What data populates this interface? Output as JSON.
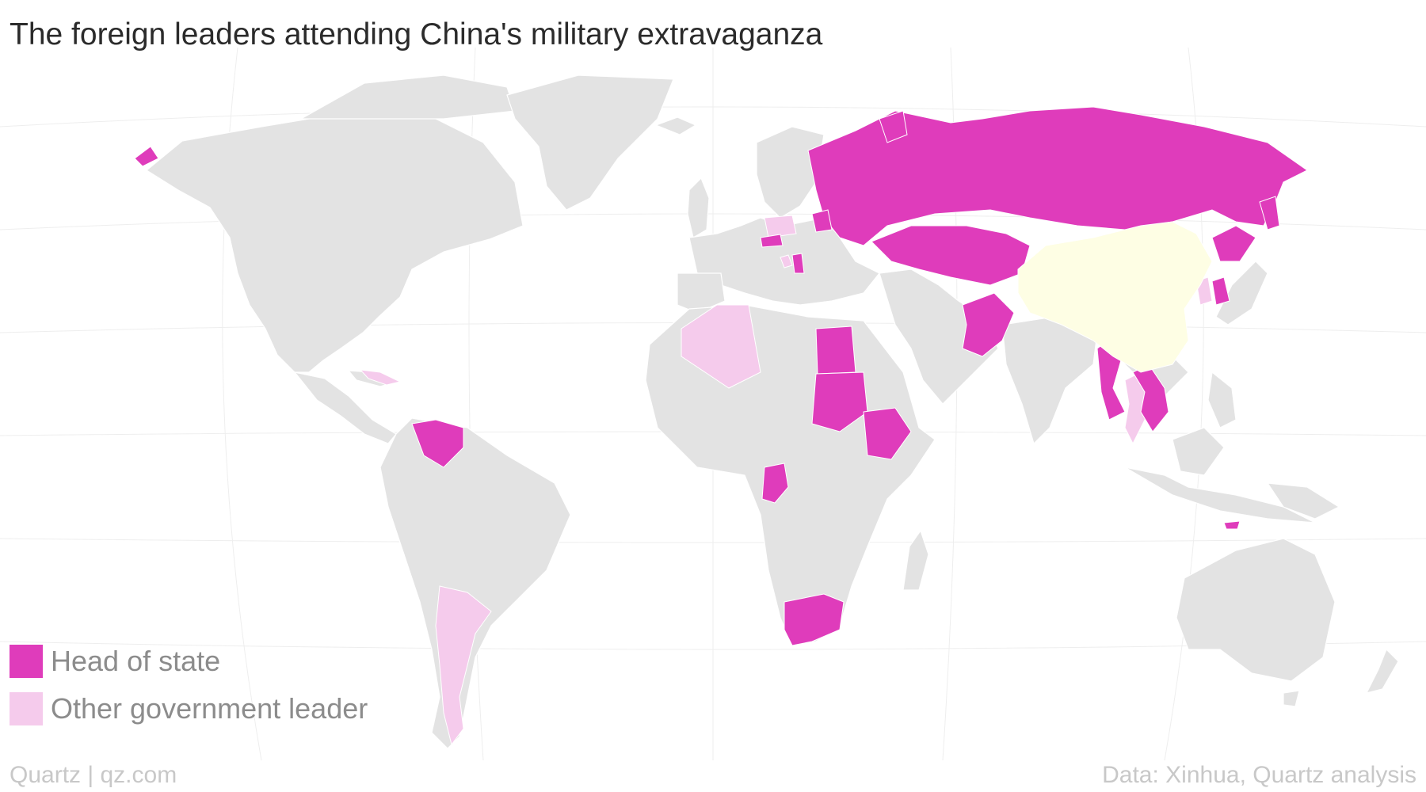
{
  "title": "The foreign leaders attending China's military extravaganza",
  "legend": [
    {
      "label": "Head of state",
      "color": "#df3cbb"
    },
    {
      "label": "Other government leader",
      "color": "#f5cbec"
    }
  ],
  "colors": {
    "head_of_state": "#df3cbb",
    "other_government_leader": "#f5cbec",
    "host_country": "#fefee4",
    "other_land": "#e3e3e3"
  },
  "footer": {
    "source_left": "Quartz | qz.com",
    "source_right": "Data: Xinhua, Quartz analysis"
  }
}
